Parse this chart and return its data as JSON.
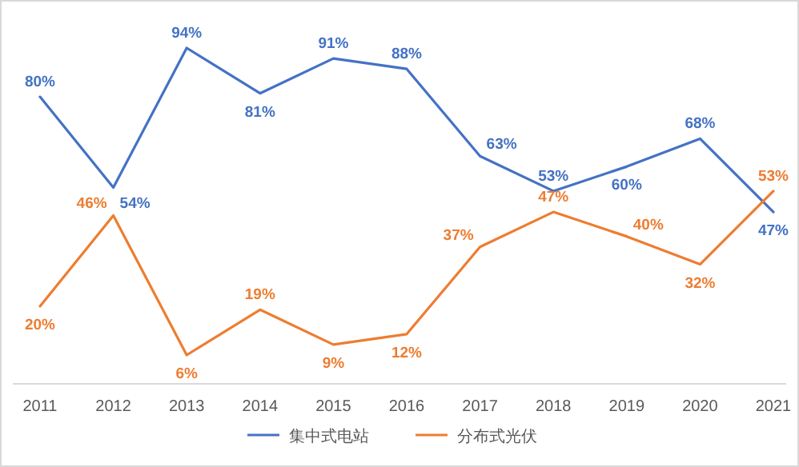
{
  "chart_data": {
    "type": "line",
    "categories": [
      "2011",
      "2012",
      "2013",
      "2014",
      "2015",
      "2016",
      "2017",
      "2018",
      "2019",
      "2020",
      "2021"
    ],
    "series": [
      {
        "name": "集中式电站",
        "color": "#4472c4",
        "values": [
          80,
          54,
          94,
          81,
          91,
          88,
          63,
          53,
          60,
          68,
          47
        ],
        "value_labels": [
          "80%",
          "54%",
          "94%",
          "81%",
          "91%",
          "88%",
          "63%",
          "53%",
          "60%",
          "68%",
          "47%"
        ]
      },
      {
        "name": "分布式光伏",
        "color": "#ed7d31",
        "values": [
          20,
          46,
          6,
          19,
          9,
          12,
          37,
          47,
          40,
          32,
          53
        ],
        "value_labels": [
          "20%",
          "46%",
          "6%",
          "19%",
          "9%",
          "12%",
          "37%",
          "47%",
          "40%",
          "32%",
          "53%"
        ]
      }
    ],
    "legend": "bottom",
    "line_style": "solid",
    "tick_labels": "x"
  }
}
